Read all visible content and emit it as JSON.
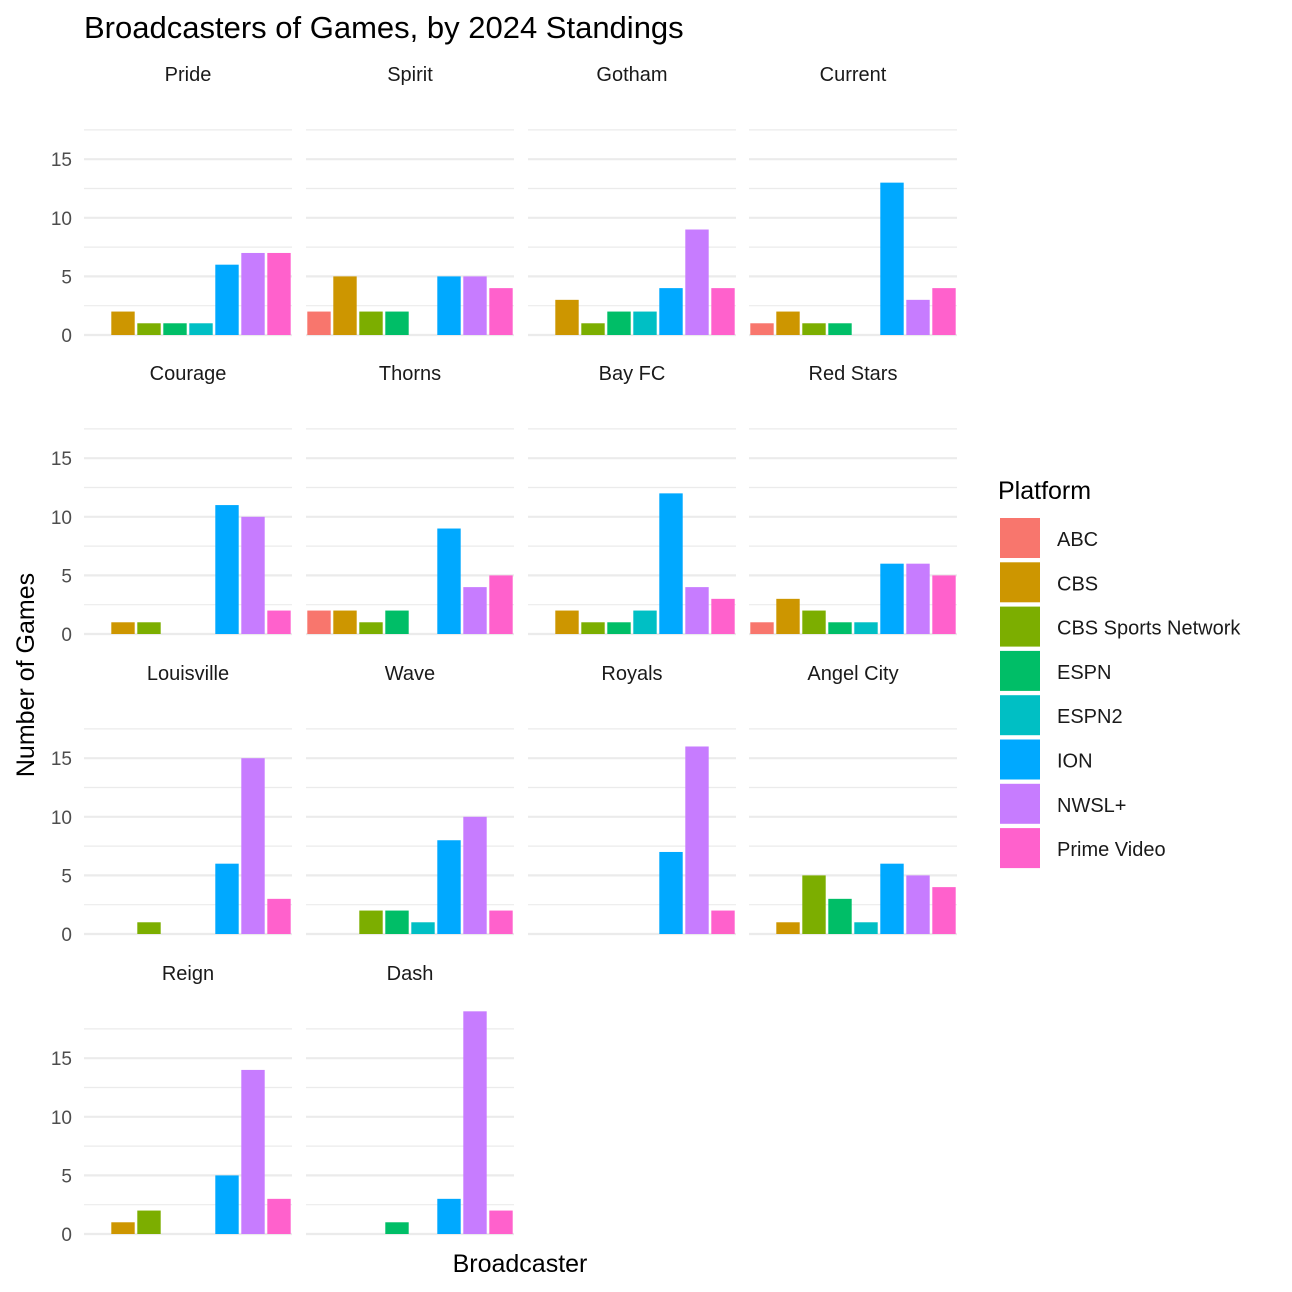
{
  "chart_data": {
    "type": "bar",
    "title": "Broadcasters of Games, by 2024 Standings",
    "xlabel": "Broadcaster",
    "ylabel": "Number of Games",
    "ylim": [
      0,
      19.5
    ],
    "yticks": [
      0,
      5,
      10,
      15
    ],
    "grid": true,
    "legend": {
      "title": "Platform",
      "position": "right"
    },
    "platforms": [
      {
        "name": "ABC",
        "color": "#F8766D"
      },
      {
        "name": "CBS",
        "color": "#CD9600"
      },
      {
        "name": "CBS Sports Network",
        "color": "#7CAE00"
      },
      {
        "name": "ESPN",
        "color": "#00BE67"
      },
      {
        "name": "ESPN2",
        "color": "#00BFC4"
      },
      {
        "name": "ION",
        "color": "#00A9FF"
      },
      {
        "name": "NWSL+",
        "color": "#C77CFF"
      },
      {
        "name": "Prime Video",
        "color": "#FF61CC"
      }
    ],
    "panels": [
      {
        "team": "Pride",
        "values": [
          0,
          2,
          1,
          1,
          1,
          6,
          7,
          7
        ]
      },
      {
        "team": "Spirit",
        "values": [
          2,
          5,
          2,
          2,
          0,
          5,
          5,
          4
        ]
      },
      {
        "team": "Gotham",
        "values": [
          0,
          3,
          1,
          2,
          2,
          4,
          9,
          4
        ]
      },
      {
        "team": "Current",
        "values": [
          1,
          2,
          1,
          1,
          0,
          13,
          3,
          4
        ]
      },
      {
        "team": "Courage",
        "values": [
          0,
          1,
          1,
          0,
          0,
          11,
          10,
          2
        ]
      },
      {
        "team": "Thorns",
        "values": [
          2,
          2,
          1,
          2,
          0,
          9,
          4,
          5
        ]
      },
      {
        "team": "Bay FC",
        "values": [
          0,
          2,
          1,
          1,
          2,
          12,
          4,
          3
        ]
      },
      {
        "team": "Red Stars",
        "values": [
          1,
          3,
          2,
          1,
          1,
          6,
          6,
          5
        ]
      },
      {
        "team": "Louisville",
        "values": [
          0,
          0,
          1,
          0,
          0,
          6,
          15,
          3
        ]
      },
      {
        "team": "Wave",
        "values": [
          0,
          0,
          2,
          2,
          1,
          8,
          10,
          2
        ]
      },
      {
        "team": "Royals",
        "values": [
          0,
          0,
          0,
          0,
          0,
          7,
          16,
          2
        ]
      },
      {
        "team": "Angel City",
        "values": [
          0,
          1,
          5,
          3,
          1,
          6,
          5,
          4
        ]
      },
      {
        "team": "Reign",
        "values": [
          0,
          1,
          2,
          0,
          0,
          5,
          14,
          3
        ]
      },
      {
        "team": "Dash",
        "values": [
          0,
          0,
          0,
          1,
          0,
          3,
          19,
          2
        ]
      }
    ]
  }
}
